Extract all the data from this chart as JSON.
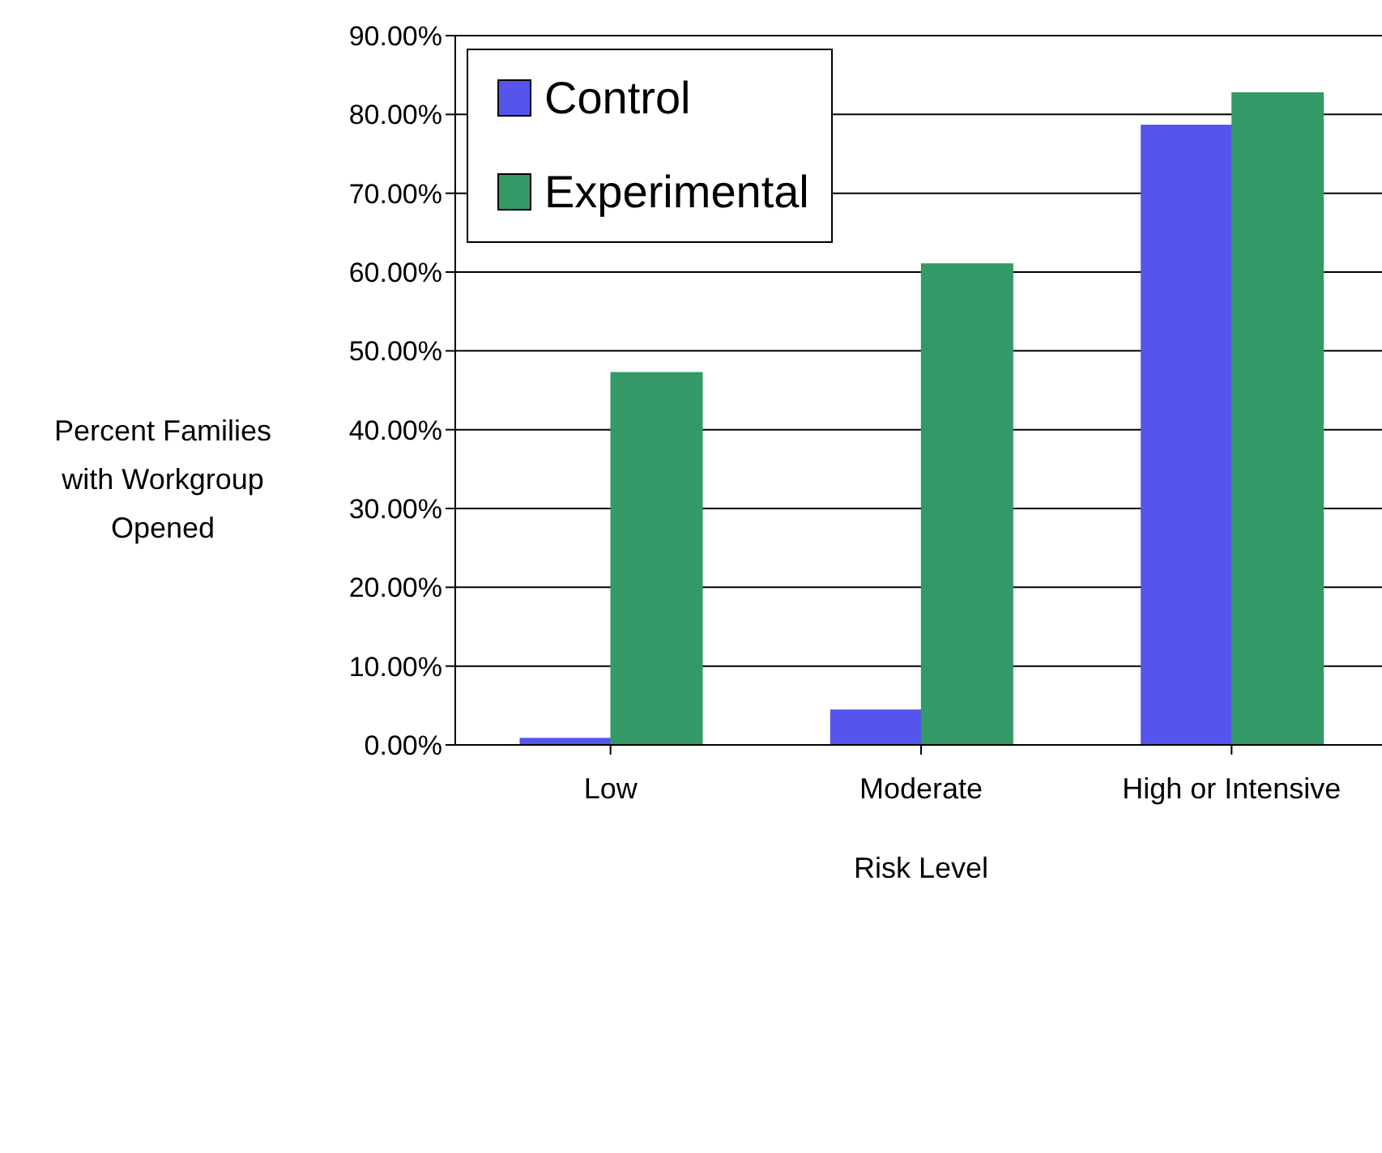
{
  "chart_data": {
    "type": "bar",
    "xlabel": "Risk Level",
    "ylabel": "Percent Families with Workgroup Opened",
    "categories": [
      "Low",
      "Moderate",
      "High or Intensive"
    ],
    "series": [
      {
        "name": "Control",
        "color": "#5555ee",
        "values": [
          0.8,
          4.4,
          78.6
        ]
      },
      {
        "name": "Experimental",
        "color": "#339966",
        "values": [
          47.2,
          61.0,
          82.7
        ]
      }
    ],
    "ylim": [
      0,
      90
    ],
    "yticks": [
      {
        "value": 0,
        "label": "0.00%"
      },
      {
        "value": 10,
        "label": "10.00%"
      },
      {
        "value": 20,
        "label": "20.00%"
      },
      {
        "value": 30,
        "label": "30.00%"
      },
      {
        "value": 40,
        "label": "40.00%"
      },
      {
        "value": 50,
        "label": "50.00%"
      },
      {
        "value": 60,
        "label": "60.00%"
      },
      {
        "value": 70,
        "label": "70.00%"
      },
      {
        "value": 80,
        "label": "80.00%"
      },
      {
        "value": 90,
        "label": "90.00%"
      }
    ],
    "grid": "y",
    "legend": "top left"
  }
}
